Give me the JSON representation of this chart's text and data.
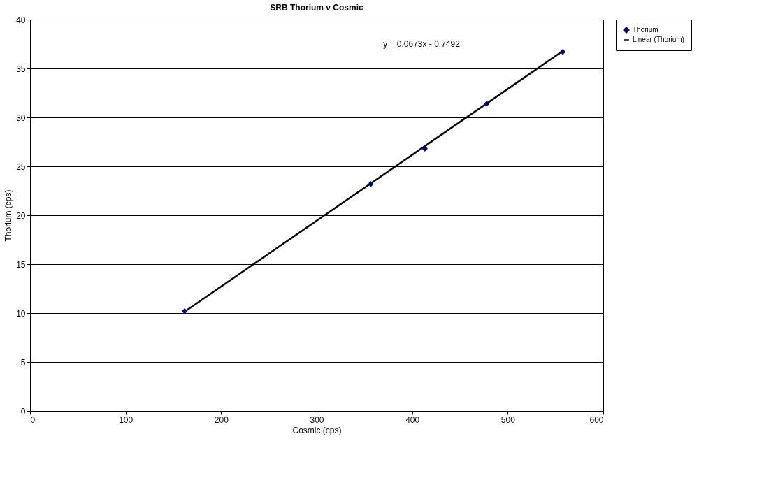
{
  "chart_data": {
    "type": "scatter",
    "title": "SRB Thorium v Cosmic",
    "xlabel": "Cosmic (cps)",
    "ylabel": "Thorium (cps)",
    "x": [
      161.8,
      356.7,
      413.3,
      478,
      557.6
    ],
    "series": [
      {
        "name": "Thorium",
        "color": "#000080",
        "marker": "diamond",
        "values": [
          10.2,
          23.2,
          26.8,
          31.4,
          36.7
        ]
      },
      {
        "name": "Linear (Thorium)",
        "color": "#000000",
        "type": "line",
        "marker": "none",
        "line_style": "solid",
        "x": [
          161.8,
          557.6
        ],
        "values": [
          10.14,
          36.78
        ]
      }
    ],
    "xlim": [
      0,
      600
    ],
    "xticks": [
      0,
      100,
      200,
      300,
      400,
      500,
      600
    ],
    "ylim": [
      0,
      40
    ],
    "yticks": [
      0,
      5,
      10,
      15,
      20,
      25,
      30,
      35,
      40
    ],
    "grid": "y",
    "legend": "right",
    "annotations": [
      "y = 0.0673x - 0.7492"
    ]
  }
}
